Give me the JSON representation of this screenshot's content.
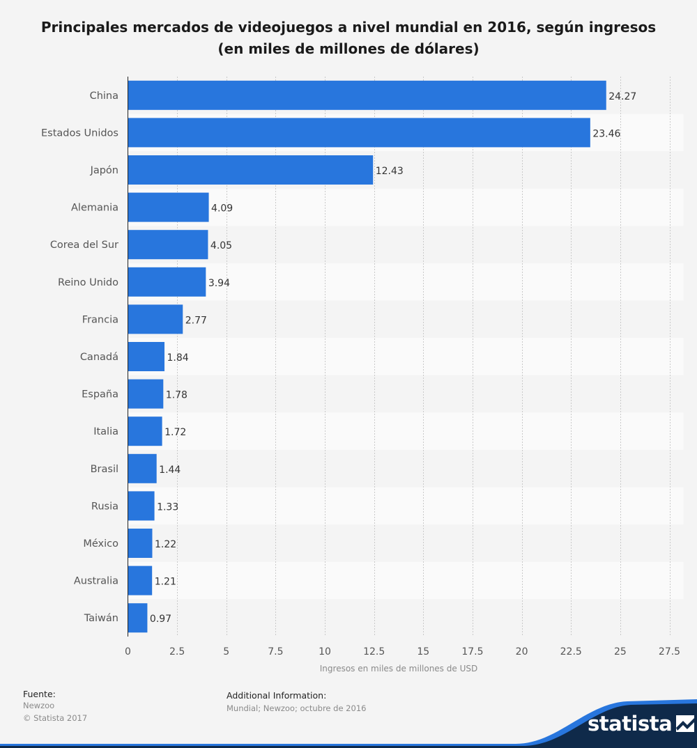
{
  "chart_data": {
    "type": "bar",
    "orientation": "horizontal",
    "title": "Principales mercados de videojuegos a nivel mundial en 2016, según ingresos (en miles de millones de dólares)",
    "categories": [
      "China",
      "Estados Unidos",
      "Japón",
      "Alemania",
      "Corea del Sur",
      "Reino Unido",
      "Francia",
      "Canadá",
      "España",
      "Italia",
      "Brasil",
      "Rusia",
      "México",
      "Australia",
      "Taiwán"
    ],
    "values": [
      24.27,
      23.46,
      12.43,
      4.09,
      4.05,
      3.94,
      2.77,
      1.84,
      1.78,
      1.72,
      1.44,
      1.33,
      1.22,
      1.21,
      0.97
    ],
    "value_labels": [
      "24.27",
      "23.46",
      "12.43",
      "4.09",
      "4.05",
      "3.94",
      "2.77",
      "1.84",
      "1.78",
      "1.72",
      "1.44",
      "1.33",
      "1.22",
      "1.21",
      "0.97"
    ],
    "xlabel": "Ingresos en miles de millones de USD",
    "ylabel": "",
    "xlim": [
      0,
      27.5
    ],
    "x_ticks": [
      0,
      2.5,
      5,
      7.5,
      10,
      12.5,
      15,
      17.5,
      20,
      22.5,
      25,
      27.5
    ],
    "x_tick_labels": [
      "0",
      "2.5",
      "5",
      "7.5",
      "10",
      "12.5",
      "15",
      "17.5",
      "20",
      "22.5",
      "25",
      "27.5"
    ],
    "grid": true,
    "bar_color": "#2876dd"
  },
  "footer": {
    "source_label": "Fuente:",
    "source_lines": [
      "Newzoo",
      "© Statista 2017"
    ],
    "info_label": "Additional Information:",
    "info_text": "Mundial; Newzoo; octubre de 2016"
  },
  "brand": {
    "name": "statista",
    "color": "#0f2a4a",
    "accent": "#2876dd"
  }
}
